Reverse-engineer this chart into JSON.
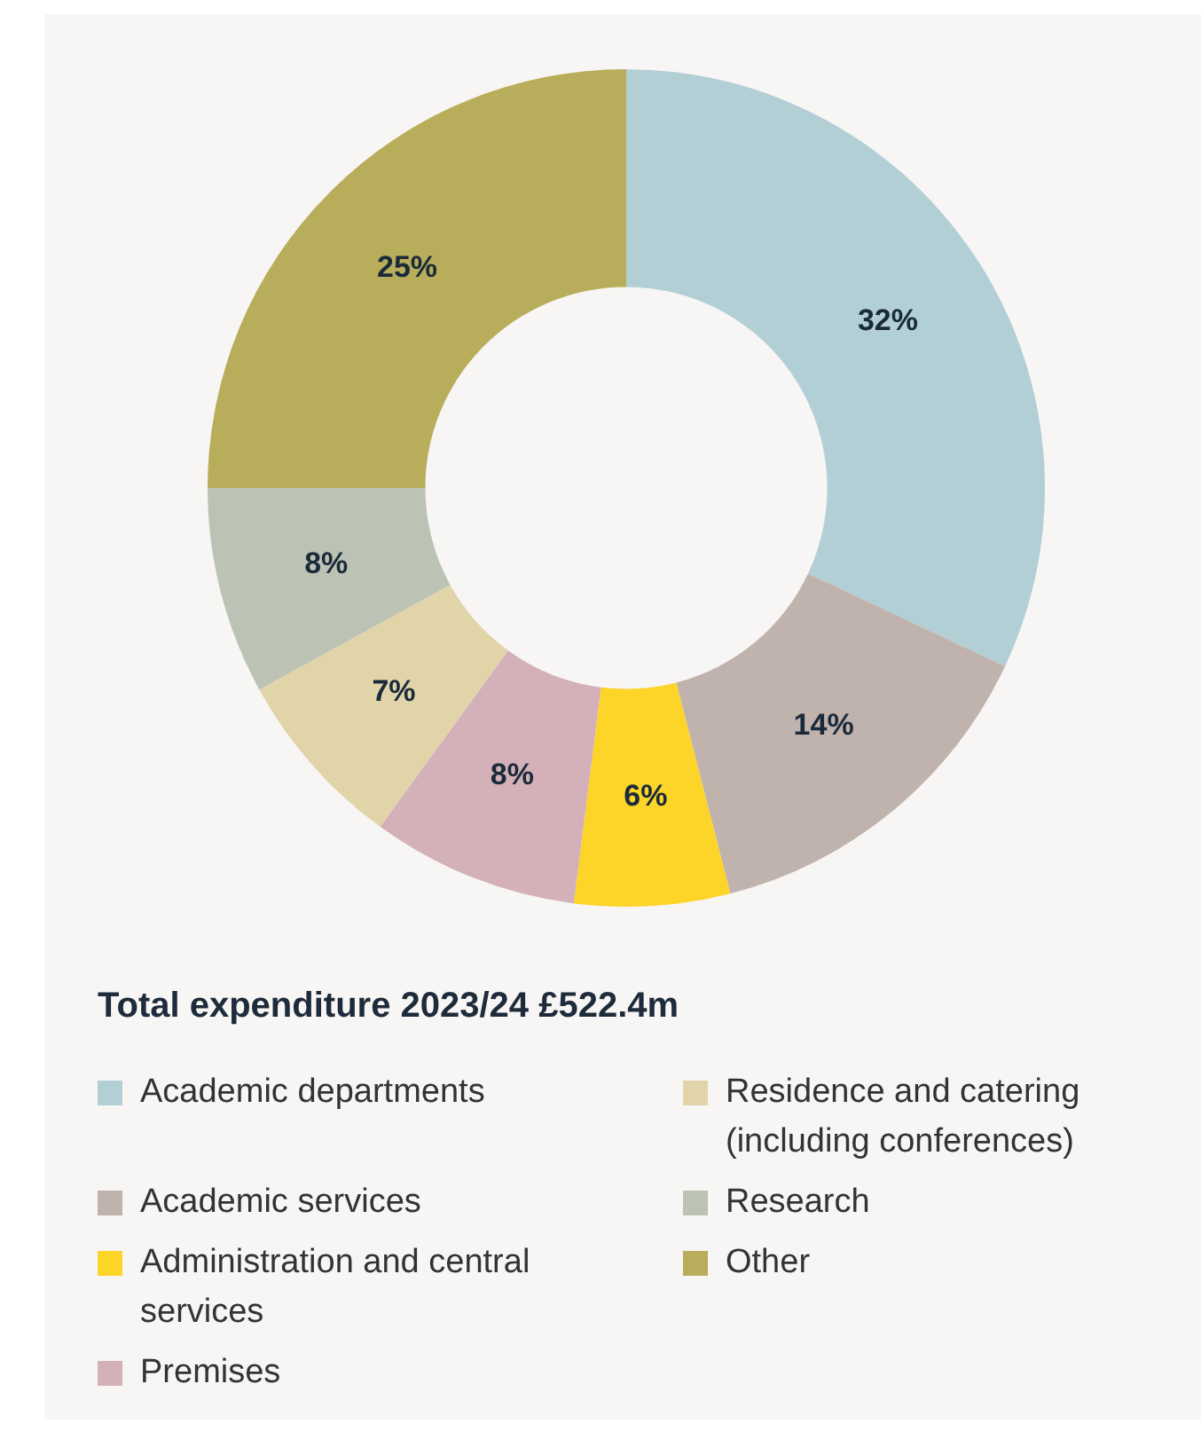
{
  "chart_data": {
    "type": "donut",
    "title": "Total expenditure 2023/24 £522.4m",
    "categories": [
      "Academic departments",
      "Academic services",
      "Administration and central services",
      "Premises",
      "Residence and catering (including conferences)",
      "Research",
      "Other"
    ],
    "values": [
      32,
      14,
      6,
      8,
      7,
      8,
      25
    ],
    "colors": [
      "#b3cfd6",
      "#c0b3ae",
      "#fdd428",
      "#d4b0b8",
      "#e2d4a9",
      "#bcc3b5",
      "#b8ad5a"
    ],
    "value_labels": [
      "32%",
      "14%",
      "6%",
      "8%",
      "7%",
      "8%",
      "25%"
    ],
    "legend": "bottom"
  }
}
